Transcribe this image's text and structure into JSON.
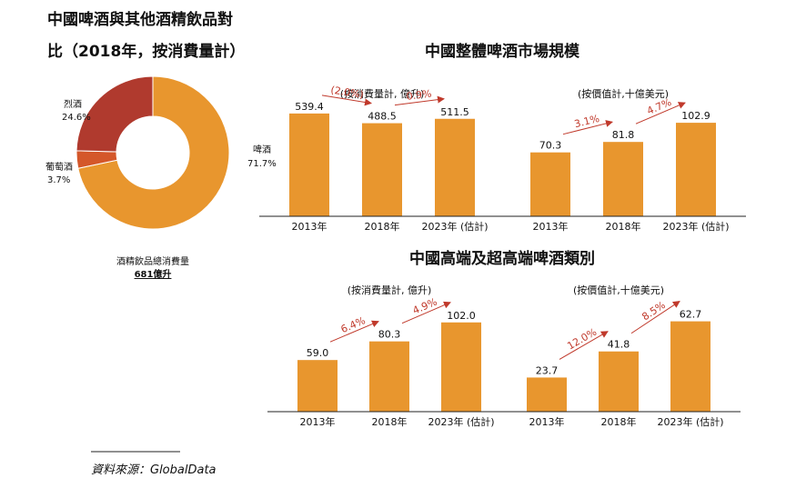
{
  "colors": {
    "bar": "#e8962e",
    "pie_beer": "#e8962e",
    "pie_wine": "#d4572a",
    "pie_spirits": "#b03a2e",
    "growth": "#c0392b",
    "axis": "#222222"
  },
  "pie_title_line1": "中國啤酒與其他酒精飲品對",
  "pie_title_line2": "比（2018年，按消費量計）",
  "market_title": "中國整體啤酒市場規模",
  "premium_title": "中國高端及超高端啤酒類別",
  "source": "資料來源：GlobalData",
  "chart_data": [
    {
      "id": "pie",
      "type": "pie",
      "title": "中國啤酒與其他酒精飲品對比（2018年，按消費量計）",
      "slices": [
        {
          "name": "啤酒",
          "value": 71.7,
          "label": "71.7%",
          "color_key": "pie_beer"
        },
        {
          "name": "葡萄酒",
          "value": 3.7,
          "label": "3.7%",
          "color_key": "pie_wine"
        },
        {
          "name": "烈酒",
          "value": 24.6,
          "label": "24.6%",
          "color_key": "pie_spirits"
        }
      ],
      "center_label": "酒精飲品總消費量",
      "center_value": "681億升"
    },
    {
      "id": "market_volume",
      "type": "bar",
      "subtitle": "(按消費量計, 億升)",
      "categories": [
        "2013年",
        "2018年",
        "2023年 (估計)"
      ],
      "values": [
        539.4,
        488.5,
        511.5
      ],
      "value_labels": [
        "539.4",
        "488.5",
        "511.5"
      ],
      "growth": [
        "(2.0%)",
        "0.9%"
      ],
      "ylim": [
        0,
        620
      ]
    },
    {
      "id": "market_value",
      "type": "bar",
      "subtitle": "(按價值計,十億美元)",
      "categories": [
        "2013年",
        "2018年",
        "2023年 (估計)"
      ],
      "values": [
        70.3,
        81.8,
        102.9
      ],
      "value_labels": [
        "70.3",
        "81.8",
        "102.9"
      ],
      "growth": [
        "3.1%",
        "4.7%"
      ],
      "ylim": [
        0,
        130
      ]
    },
    {
      "id": "premium_volume",
      "type": "bar",
      "subtitle": "(按消費量計, 億升)",
      "categories": [
        "2013年",
        "2018年",
        "2023年 (估計)"
      ],
      "values": [
        59.0,
        80.3,
        102.0
      ],
      "value_labels": [
        "59.0",
        "80.3",
        "102.0"
      ],
      "growth": [
        "6.4%",
        "4.9%"
      ],
      "ylim": [
        0,
        135
      ]
    },
    {
      "id": "premium_value",
      "type": "bar",
      "subtitle": "(按價值計,十億美元)",
      "categories": [
        "2013年",
        "2018年",
        "2023年 (估計)"
      ],
      "values": [
        23.7,
        41.8,
        62.7
      ],
      "value_labels": [
        "23.7",
        "41.8",
        "62.7"
      ],
      "growth": [
        "12.0%",
        "8.5%"
      ],
      "ylim": [
        0,
        82
      ]
    }
  ]
}
